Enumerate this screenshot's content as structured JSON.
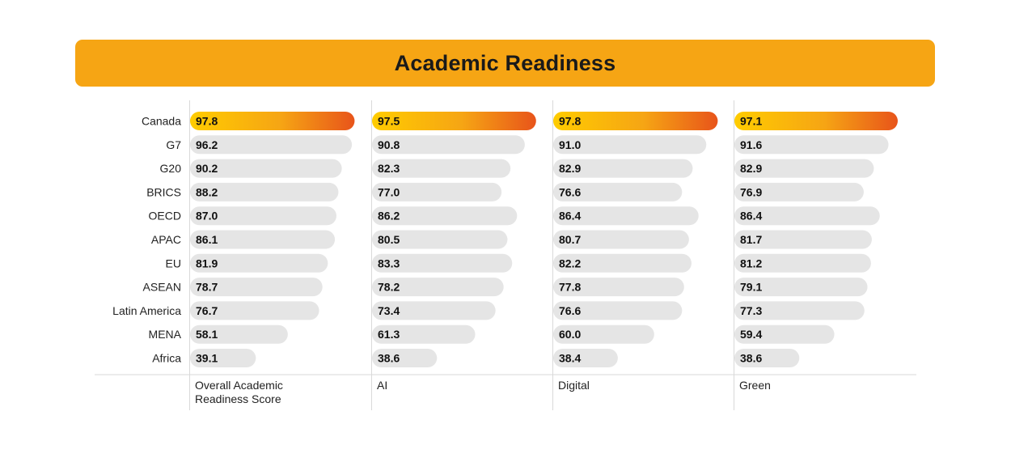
{
  "title": "Academic Readiness",
  "colors": {
    "banner": "#f6a514",
    "bar": "#e5e5e5",
    "highlight_start": "#ffcc00",
    "highlight_mid": "#f6a514",
    "highlight_end": "#e8541a",
    "grid": "#d9d9d9"
  },
  "chart_data": {
    "type": "bar",
    "orientation": "horizontal",
    "title": "Academic Readiness",
    "categories": [
      "Canada",
      "G7",
      "G20",
      "BRICS",
      "OECD",
      "APAC",
      "EU",
      "ASEAN",
      "Latin America",
      "MENA",
      "Africa"
    ],
    "highlight_category": "Canada",
    "xlim": [
      0,
      100
    ],
    "series": [
      {
        "name": "Overall Academic\nReadiness Score",
        "label_lines": [
          "Overall Academic",
          "Readiness Score"
        ],
        "values": [
          97.8,
          96.2,
          90.2,
          88.2,
          87.0,
          86.1,
          81.9,
          78.7,
          76.7,
          58.1,
          39.1
        ]
      },
      {
        "name": "AI",
        "label_lines": [
          "AI"
        ],
        "values": [
          97.5,
          90.8,
          82.3,
          77.0,
          86.2,
          80.5,
          83.3,
          78.2,
          73.4,
          61.3,
          38.6
        ]
      },
      {
        "name": "Digital",
        "label_lines": [
          "Digital"
        ],
        "values": [
          97.8,
          91.0,
          82.9,
          76.6,
          86.4,
          80.7,
          82.2,
          77.8,
          76.6,
          60.0,
          38.4
        ]
      },
      {
        "name": "Green",
        "label_lines": [
          "Green"
        ],
        "values": [
          97.1,
          91.6,
          82.9,
          76.9,
          86.4,
          81.7,
          81.2,
          79.1,
          77.3,
          59.4,
          38.6
        ]
      }
    ]
  }
}
